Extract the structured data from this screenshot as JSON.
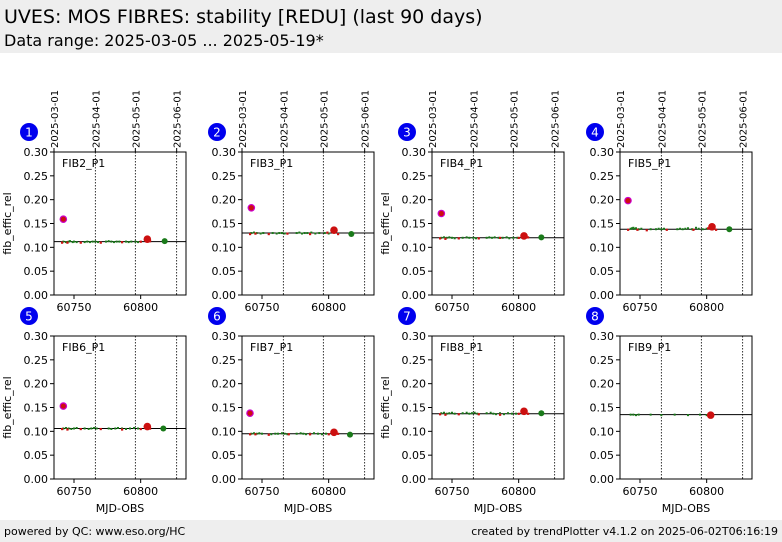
{
  "header": {
    "title": "UVES: MOS FIBRES: stability [REDU] (last 90 days)",
    "subtitle": "Data range: 2025-03-05 ... 2025-05-19*"
  },
  "footer": {
    "left": "powered by QC: www.eso.org/HC",
    "right": "created by trendPlotter v4.1.2 on 2025-06-02T06:16:19"
  },
  "colors": {
    "good": "#1a7a1a",
    "outlier": "#cc1010",
    "marker": "#0000ee",
    "outlier_edge": "#cc00cc"
  },
  "date_axis": {
    "ticks": [
      {
        "label": "2025-03-01",
        "mjd": 60735
      },
      {
        "label": "2025-04-01",
        "mjd": 60766
      },
      {
        "label": "2025-05-01",
        "mjd": 60796
      },
      {
        "label": "2025-06-01",
        "mjd": 60827
      }
    ]
  },
  "chart_data": [
    {
      "type": "scatter",
      "panel": "1",
      "label": "FIB2_P1",
      "ylabel": "fib_effic_rel",
      "xlabel": "",
      "xlim": [
        60735,
        60834
      ],
      "ylim": [
        0,
        0.3
      ],
      "xticks": [
        60750,
        60800
      ],
      "yticks": [
        0,
        0.05,
        0.1,
        0.15,
        0.2,
        0.25,
        0.3
      ],
      "reference": 0.112,
      "points": [
        [
          60742,
          0.112
        ],
        [
          60744,
          0.111
        ],
        [
          60746,
          0.112
        ],
        [
          60747,
          0.113
        ],
        [
          60749,
          0.111
        ],
        [
          60750,
          0.112
        ],
        [
          60752,
          0.111
        ],
        [
          60758,
          0.111
        ],
        [
          60760,
          0.112
        ],
        [
          60762,
          0.111
        ],
        [
          60764,
          0.112
        ],
        [
          60766,
          0.112
        ],
        [
          60768,
          0.111
        ],
        [
          60774,
          0.112
        ],
        [
          60776,
          0.113
        ],
        [
          60778,
          0.112
        ],
        [
          60780,
          0.111
        ],
        [
          60782,
          0.112
        ],
        [
          60784,
          0.112
        ],
        [
          60786,
          0.111
        ],
        [
          60789,
          0.112
        ],
        [
          60791,
          0.111
        ],
        [
          60793,
          0.112
        ],
        [
          60796,
          0.112
        ],
        [
          60798,
          0.111
        ],
        [
          60817,
          0.112
        ]
      ],
      "outliers": [
        [
          60741,
          0.11
        ],
        [
          60745,
          0.11
        ],
        [
          60755,
          0.11
        ],
        [
          60770,
          0.11
        ],
        [
          60786,
          0.111
        ],
        [
          60800,
          0.112
        ],
        [
          60805,
          0.117
        ],
        [
          60807,
          0.113
        ]
      ],
      "big_outliers": [
        [
          60805,
          0.117
        ]
      ],
      "big_good": [
        [
          60818,
          0.113
        ]
      ],
      "highlight": [
        [
          60742,
          0.159
        ]
      ]
    },
    {
      "type": "scatter",
      "panel": "2",
      "label": "FIB3_P1",
      "ylabel": "",
      "xlabel": "",
      "xlim": [
        60735,
        60834
      ],
      "ylim": [
        0,
        0.3
      ],
      "xticks": [
        60750,
        60800
      ],
      "yticks": [
        0,
        0.05,
        0.1,
        0.15,
        0.2,
        0.25,
        0.3
      ],
      "reference": 0.13,
      "points": [
        [
          60742,
          0.13
        ],
        [
          60744,
          0.131
        ],
        [
          60746,
          0.13
        ],
        [
          60749,
          0.129
        ],
        [
          60751,
          0.13
        ],
        [
          60758,
          0.13
        ],
        [
          60761,
          0.129
        ],
        [
          60763,
          0.13
        ],
        [
          60765,
          0.13
        ],
        [
          60767,
          0.129
        ],
        [
          60776,
          0.13
        ],
        [
          60778,
          0.131
        ],
        [
          60780,
          0.129
        ],
        [
          60782,
          0.13
        ],
        [
          60784,
          0.13
        ],
        [
          60787,
          0.131
        ],
        [
          60790,
          0.129
        ],
        [
          60793,
          0.13
        ],
        [
          60797,
          0.13
        ],
        [
          60800,
          0.129
        ],
        [
          60817,
          0.128
        ]
      ],
      "outliers": [
        [
          60741,
          0.128
        ],
        [
          60745,
          0.129
        ],
        [
          60755,
          0.128
        ],
        [
          60769,
          0.129
        ],
        [
          60786,
          0.128
        ],
        [
          60799,
          0.131
        ],
        [
          60804,
          0.136
        ],
        [
          60807,
          0.128
        ]
      ],
      "big_outliers": [
        [
          60804,
          0.136
        ]
      ],
      "big_good": [
        [
          60817,
          0.128
        ]
      ],
      "highlight": [
        [
          60742,
          0.183
        ]
      ]
    },
    {
      "type": "scatter",
      "panel": "3",
      "label": "FIB4_P1",
      "ylabel": "fib_effic_rel",
      "xlabel": "",
      "xlim": [
        60735,
        60834
      ],
      "ylim": [
        0,
        0.3
      ],
      "xticks": [
        60750,
        60800
      ],
      "yticks": [
        0,
        0.05,
        0.1,
        0.15,
        0.2,
        0.25,
        0.3
      ],
      "reference": 0.12,
      "points": [
        [
          60742,
          0.12
        ],
        [
          60744,
          0.121
        ],
        [
          60746,
          0.12
        ],
        [
          60748,
          0.121
        ],
        [
          60750,
          0.12
        ],
        [
          60752,
          0.119
        ],
        [
          60758,
          0.12
        ],
        [
          60761,
          0.121
        ],
        [
          60763,
          0.12
        ],
        [
          60766,
          0.12
        ],
        [
          60768,
          0.119
        ],
        [
          60776,
          0.12
        ],
        [
          60778,
          0.121
        ],
        [
          60780,
          0.12
        ],
        [
          60782,
          0.121
        ],
        [
          60785,
          0.12
        ],
        [
          60788,
          0.12
        ],
        [
          60791,
          0.121
        ],
        [
          60793,
          0.119
        ],
        [
          60796,
          0.12
        ],
        [
          60799,
          0.12
        ],
        [
          60817,
          0.121
        ]
      ],
      "outliers": [
        [
          60741,
          0.119
        ],
        [
          60745,
          0.118
        ],
        [
          60755,
          0.119
        ],
        [
          60770,
          0.119
        ],
        [
          60786,
          0.12
        ],
        [
          60800,
          0.12
        ],
        [
          60804,
          0.124
        ],
        [
          60807,
          0.121
        ]
      ],
      "big_outliers": [
        [
          60804,
          0.124
        ]
      ],
      "big_good": [
        [
          60817,
          0.121
        ]
      ],
      "highlight": [
        [
          60742,
          0.171
        ]
      ]
    },
    {
      "type": "scatter",
      "panel": "4",
      "label": "FIB5_P1",
      "ylabel": "",
      "xlabel": "",
      "xlim": [
        60735,
        60834
      ],
      "ylim": [
        0,
        0.3
      ],
      "xticks": [
        60750,
        60800
      ],
      "yticks": [
        0,
        0.05,
        0.1,
        0.15,
        0.2,
        0.25,
        0.3
      ],
      "reference": 0.138,
      "points": [
        [
          60743,
          0.139
        ],
        [
          60744,
          0.14
        ],
        [
          60745,
          0.141
        ],
        [
          60746,
          0.139
        ],
        [
          60747,
          0.14
        ],
        [
          60749,
          0.138
        ],
        [
          60751,
          0.139
        ],
        [
          60758,
          0.138
        ],
        [
          60762,
          0.138
        ],
        [
          60764,
          0.139
        ],
        [
          60766,
          0.138
        ],
        [
          60768,
          0.139
        ],
        [
          60778,
          0.138
        ],
        [
          60780,
          0.139
        ],
        [
          60782,
          0.138
        ],
        [
          60784,
          0.139
        ],
        [
          60786,
          0.14
        ],
        [
          60789,
          0.138
        ],
        [
          60792,
          0.141
        ],
        [
          60794,
          0.139
        ],
        [
          60797,
          0.138
        ],
        [
          60800,
          0.139
        ],
        [
          60817,
          0.138
        ]
      ],
      "outliers": [
        [
          60741,
          0.137
        ],
        [
          60748,
          0.137
        ],
        [
          60755,
          0.136
        ],
        [
          60770,
          0.137
        ],
        [
          60790,
          0.137
        ],
        [
          60801,
          0.14
        ],
        [
          60804,
          0.143
        ],
        [
          60807,
          0.137
        ]
      ],
      "big_outliers": [
        [
          60804,
          0.143
        ]
      ],
      "big_good": [
        [
          60817,
          0.138
        ]
      ],
      "highlight": [
        [
          60741,
          0.198
        ]
      ]
    },
    {
      "type": "scatter",
      "panel": "5",
      "label": "FIB6_P1",
      "ylabel": "fib_effic_rel",
      "xlabel": "MJD-OBS",
      "xlim": [
        60735,
        60834
      ],
      "ylim": [
        0,
        0.3
      ],
      "xticks": [
        60750,
        60800
      ],
      "yticks": [
        0,
        0.05,
        0.1,
        0.15,
        0.2,
        0.25,
        0.3
      ],
      "reference": 0.106,
      "points": [
        [
          60742,
          0.106
        ],
        [
          60744,
          0.107
        ],
        [
          60746,
          0.106
        ],
        [
          60748,
          0.105
        ],
        [
          60750,
          0.106
        ],
        [
          60752,
          0.107
        ],
        [
          60758,
          0.106
        ],
        [
          60761,
          0.105
        ],
        [
          60763,
          0.106
        ],
        [
          60765,
          0.107
        ],
        [
          60767,
          0.106
        ],
        [
          60776,
          0.106
        ],
        [
          60778,
          0.105
        ],
        [
          60781,
          0.106
        ],
        [
          60783,
          0.107
        ],
        [
          60786,
          0.106
        ],
        [
          60789,
          0.105
        ],
        [
          60792,
          0.106
        ],
        [
          60795,
          0.107
        ],
        [
          60798,
          0.106
        ],
        [
          60817,
          0.106
        ]
      ],
      "outliers": [
        [
          60741,
          0.105
        ],
        [
          60745,
          0.104
        ],
        [
          60755,
          0.105
        ],
        [
          60770,
          0.105
        ],
        [
          60786,
          0.104
        ],
        [
          60800,
          0.105
        ],
        [
          60805,
          0.11
        ],
        [
          60807,
          0.106
        ]
      ],
      "big_outliers": [
        [
          60805,
          0.11
        ]
      ],
      "big_good": [
        [
          60817,
          0.106
        ]
      ],
      "highlight": [
        [
          60742,
          0.153
        ]
      ]
    },
    {
      "type": "scatter",
      "panel": "6",
      "label": "FIB7_P1",
      "ylabel": "",
      "xlabel": "MJD-OBS",
      "xlim": [
        60735,
        60834
      ],
      "ylim": [
        0,
        0.3
      ],
      "xticks": [
        60750,
        60800
      ],
      "yticks": [
        0,
        0.05,
        0.1,
        0.15,
        0.2,
        0.25,
        0.3
      ],
      "reference": 0.095,
      "points": [
        [
          60742,
          0.095
        ],
        [
          60744,
          0.096
        ],
        [
          60746,
          0.095
        ],
        [
          60748,
          0.096
        ],
        [
          60750,
          0.095
        ],
        [
          60757,
          0.094
        ],
        [
          60760,
          0.095
        ],
        [
          60762,
          0.095
        ],
        [
          60765,
          0.096
        ],
        [
          60767,
          0.095
        ],
        [
          60769,
          0.094
        ],
        [
          60776,
          0.095
        ],
        [
          60779,
          0.096
        ],
        [
          60781,
          0.095
        ],
        [
          60783,
          0.094
        ],
        [
          60786,
          0.095
        ],
        [
          60789,
          0.096
        ],
        [
          60792,
          0.095
        ],
        [
          60795,
          0.094
        ],
        [
          60798,
          0.095
        ],
        [
          60816,
          0.093
        ]
      ],
      "outliers": [
        [
          60741,
          0.094
        ],
        [
          60745,
          0.094
        ],
        [
          60755,
          0.093
        ],
        [
          60770,
          0.094
        ],
        [
          60786,
          0.094
        ],
        [
          60800,
          0.094
        ],
        [
          60804,
          0.098
        ],
        [
          60807,
          0.095
        ]
      ],
      "big_outliers": [
        [
          60804,
          0.098
        ]
      ],
      "big_good": [
        [
          60816,
          0.093
        ]
      ],
      "highlight": [
        [
          60741,
          0.138
        ]
      ]
    },
    {
      "type": "scatter",
      "panel": "7",
      "label": "FIB8_P1",
      "ylabel": "fib_effic_rel",
      "xlabel": "MJD-OBS",
      "xlim": [
        60735,
        60834
      ],
      "ylim": [
        0,
        0.3
      ],
      "xticks": [
        60750,
        60800
      ],
      "yticks": [
        0,
        0.05,
        0.1,
        0.15,
        0.2,
        0.25,
        0.3
      ],
      "reference": 0.137,
      "points": [
        [
          60742,
          0.138
        ],
        [
          60744,
          0.139
        ],
        [
          60746,
          0.137
        ],
        [
          60748,
          0.138
        ],
        [
          60750,
          0.139
        ],
        [
          60752,
          0.137
        ],
        [
          60758,
          0.138
        ],
        [
          60761,
          0.139
        ],
        [
          60763,
          0.137
        ],
        [
          60765,
          0.138
        ],
        [
          60767,
          0.139
        ],
        [
          60769,
          0.137
        ],
        [
          60776,
          0.138
        ],
        [
          60779,
          0.139
        ],
        [
          60781,
          0.137
        ],
        [
          60783,
          0.136
        ],
        [
          60786,
          0.138
        ],
        [
          60789,
          0.136
        ],
        [
          60792,
          0.138
        ],
        [
          60795,
          0.137
        ],
        [
          60798,
          0.137
        ],
        [
          60817,
          0.138
        ]
      ],
      "outliers": [
        [
          60741,
          0.136
        ],
        [
          60745,
          0.135
        ],
        [
          60755,
          0.136
        ],
        [
          60770,
          0.136
        ],
        [
          60786,
          0.135
        ],
        [
          60800,
          0.137
        ],
        [
          60804,
          0.142
        ],
        [
          60807,
          0.137
        ]
      ],
      "big_outliers": [
        [
          60804,
          0.142
        ]
      ],
      "big_good": [
        [
          60817,
          0.138
        ]
      ],
      "highlight": []
    },
    {
      "type": "scatter",
      "panel": "8",
      "label": "FIB9_P1",
      "ylabel": "",
      "xlabel": "MJD-OBS",
      "xlim": [
        60735,
        60834
      ],
      "ylim": [
        0,
        0.3
      ],
      "xticks": [
        60750,
        60800
      ],
      "yticks": [
        0,
        0.05,
        0.1,
        0.15,
        0.2,
        0.25,
        0.3
      ],
      "reference": 0.135,
      "points": [
        [
          60743,
          0.135
        ],
        [
          60745,
          0.135
        ],
        [
          60747,
          0.134
        ],
        [
          60749,
          0.135
        ],
        [
          60758,
          0.135
        ],
        [
          60766,
          0.134
        ],
        [
          60776,
          0.135
        ],
        [
          60786,
          0.134
        ],
        [
          60795,
          0.135
        ],
        [
          60800,
          0.134
        ]
      ],
      "outliers": [
        [
          60802,
          0.134
        ]
      ],
      "big_outliers": [
        [
          60803,
          0.134
        ]
      ],
      "big_good": [],
      "highlight": []
    }
  ]
}
